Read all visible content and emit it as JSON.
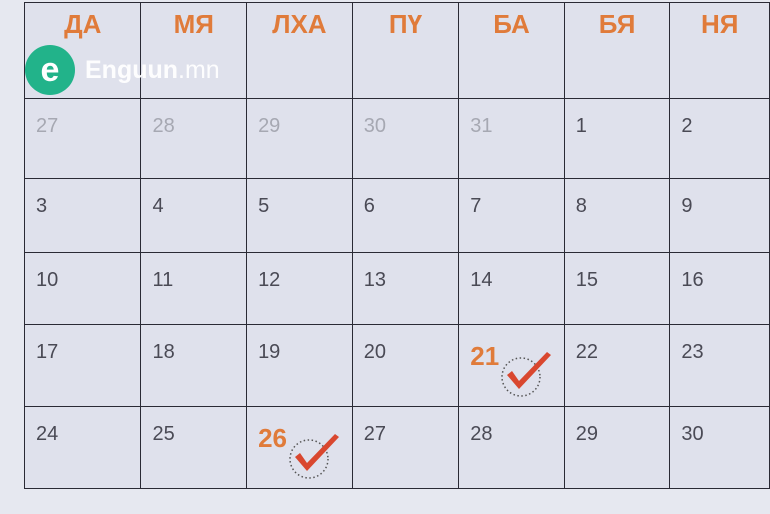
{
  "logo": {
    "mark": "e",
    "name": "Enguun",
    "domain": ".mn"
  },
  "colors": {
    "accent": "#e07b3a",
    "check": "#d9472f",
    "logo": "#22b38a"
  },
  "weekdays": [
    "ДА",
    "МЯ",
    "ЛХА",
    "ПҮ",
    "БА",
    "БЯ",
    "НЯ"
  ],
  "weeks": [
    [
      {
        "d": "27",
        "muted": true
      },
      {
        "d": "28",
        "muted": true
      },
      {
        "d": "29",
        "muted": true
      },
      {
        "d": "30",
        "muted": true
      },
      {
        "d": "31",
        "muted": true
      },
      {
        "d": "1"
      },
      {
        "d": "2"
      }
    ],
    [
      {
        "d": "3"
      },
      {
        "d": "4"
      },
      {
        "d": "5"
      },
      {
        "d": "6"
      },
      {
        "d": "7"
      },
      {
        "d": "8"
      },
      {
        "d": "9"
      }
    ],
    [
      {
        "d": "10"
      },
      {
        "d": "11"
      },
      {
        "d": "12"
      },
      {
        "d": "13"
      },
      {
        "d": "14"
      },
      {
        "d": "15"
      },
      {
        "d": "16"
      }
    ],
    [
      {
        "d": "17"
      },
      {
        "d": "18"
      },
      {
        "d": "19"
      },
      {
        "d": "20"
      },
      {
        "d": "21",
        "marked": true,
        "icon": "checkmark-icon"
      },
      {
        "d": "22"
      },
      {
        "d": "23"
      }
    ],
    [
      {
        "d": "24"
      },
      {
        "d": "25"
      },
      {
        "d": "26",
        "marked": true,
        "icon": "checkmark-icon"
      },
      {
        "d": "27"
      },
      {
        "d": "28"
      },
      {
        "d": "29"
      },
      {
        "d": "30"
      }
    ]
  ]
}
